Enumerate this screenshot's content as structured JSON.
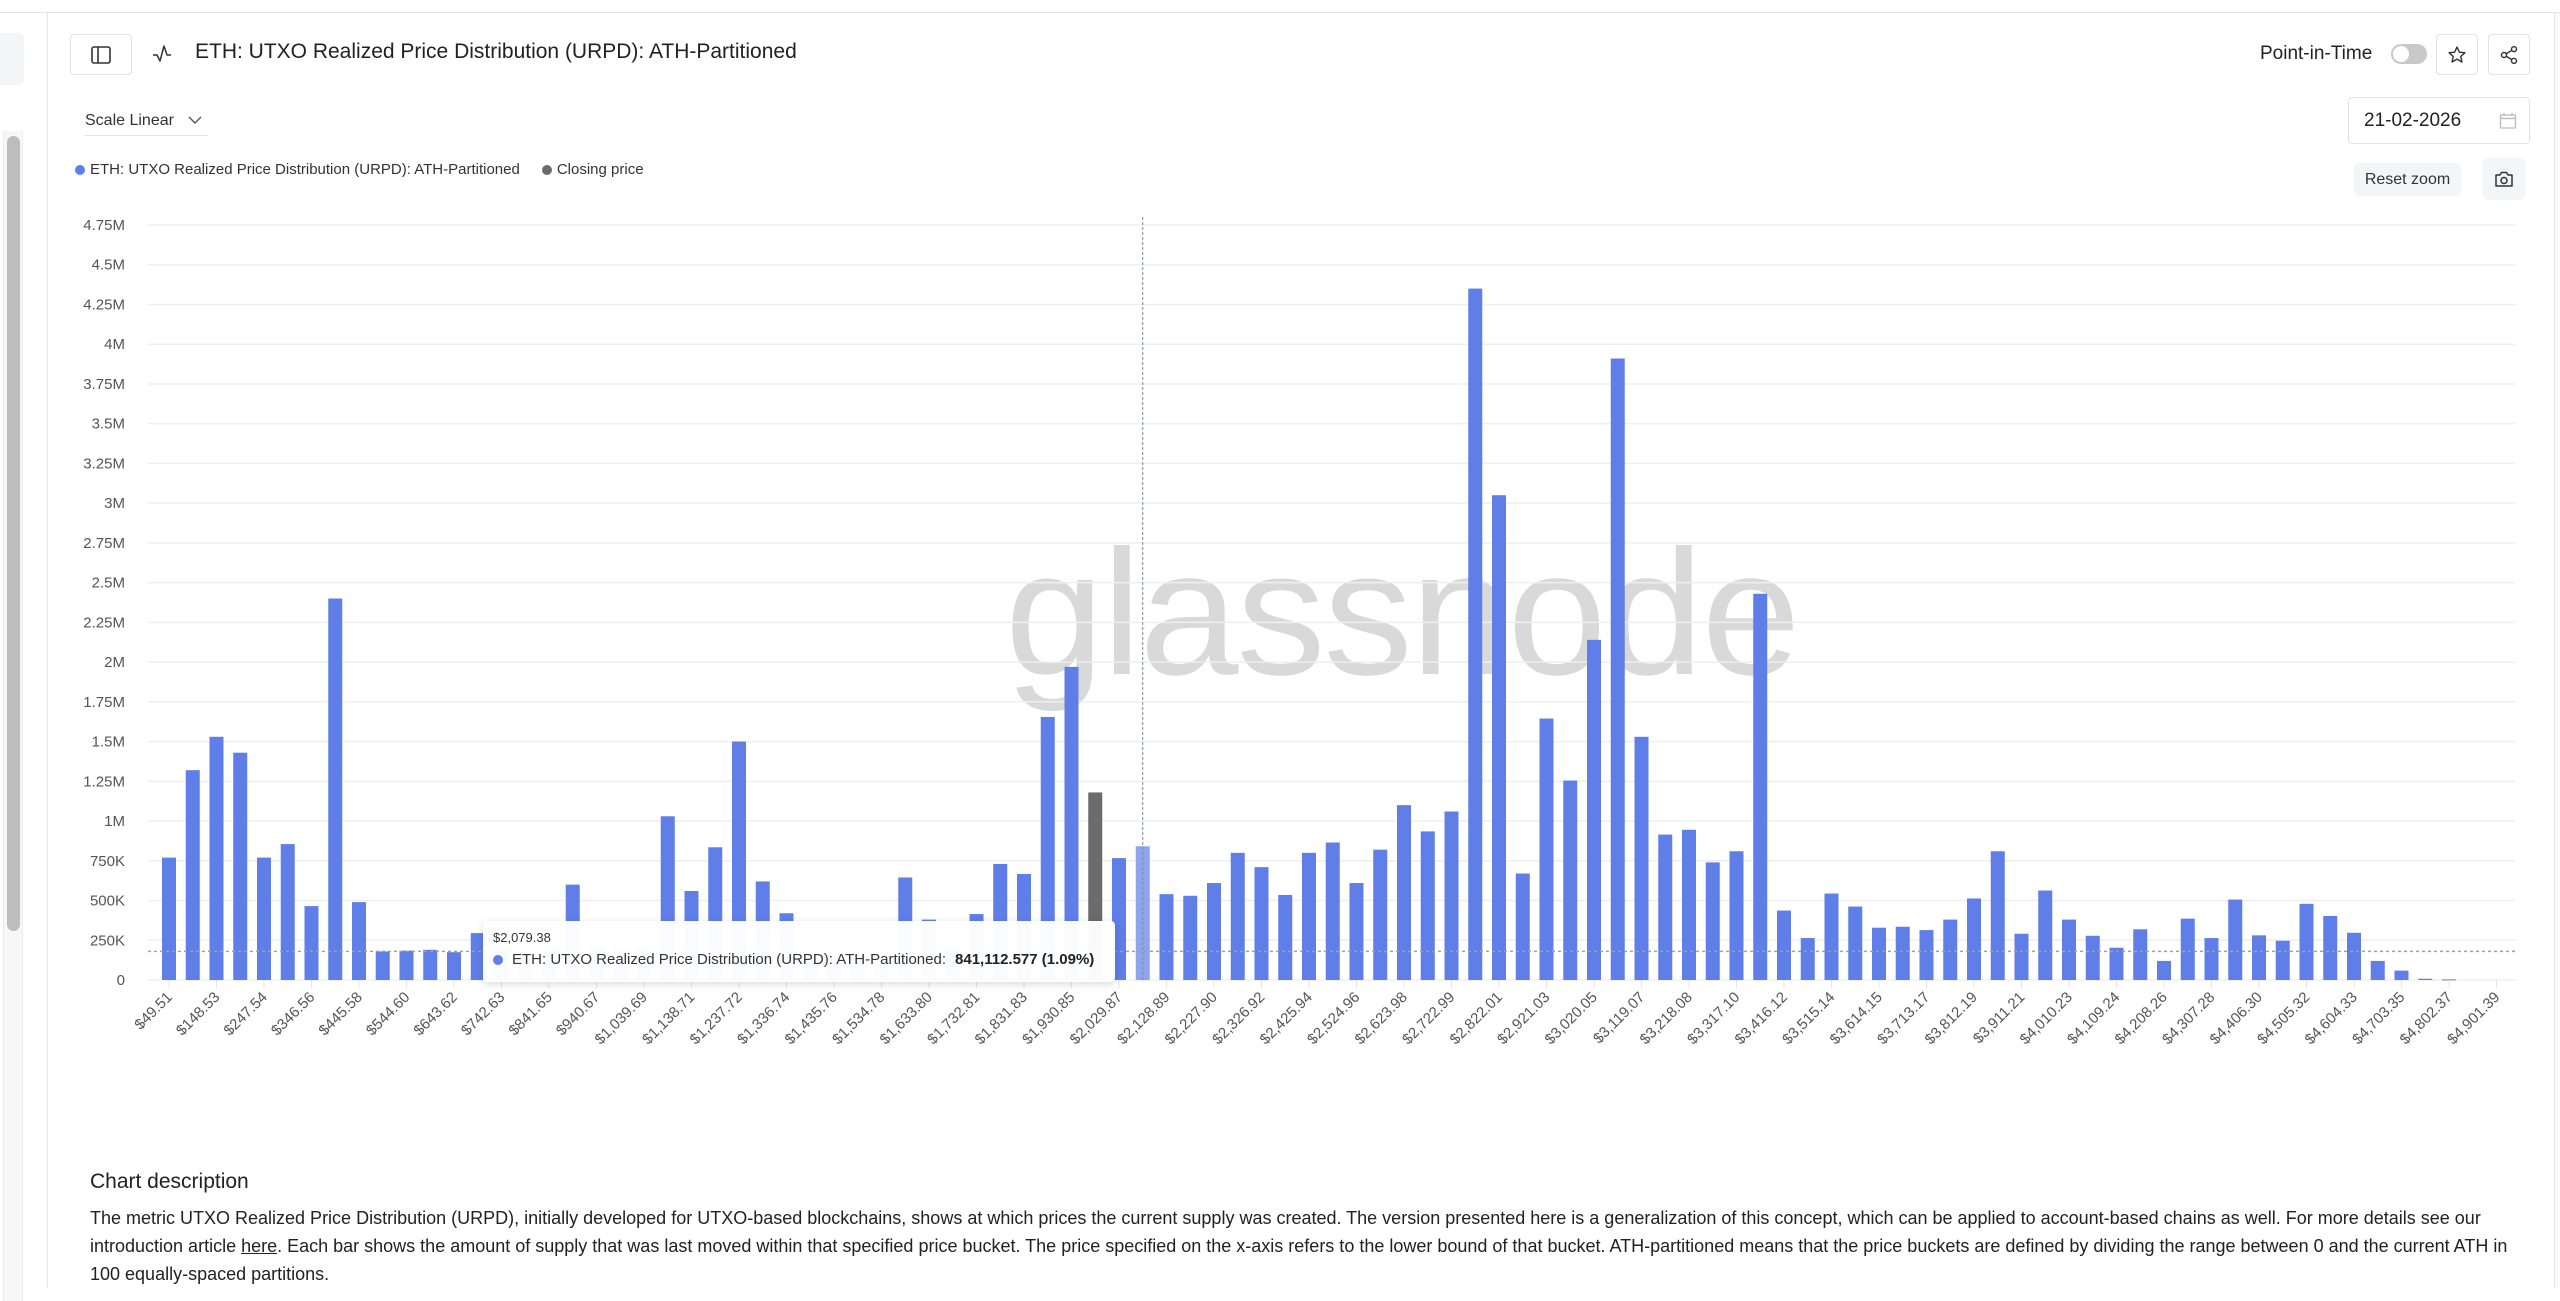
{
  "header": {
    "title": "ETH: UTXO Realized Price Distribution (URPD): ATH-Partitioned",
    "point_in_time_label": "Point-in-Time",
    "point_in_time_enabled": false,
    "sidebar_toggle_icon": "sidebar-panel-icon",
    "chart_type_icon": "line-chart-icon",
    "favorite_icon": "star-icon",
    "share_icon": "share-icon"
  },
  "controls": {
    "scale_label": "Scale Linear",
    "date_value": "21-02-2026",
    "date_icon": "calendar-icon",
    "reset_zoom_label": "Reset zoom",
    "screenshot_icon": "camera-icon"
  },
  "legend": [
    {
      "label": "ETH: UTXO Realized Price Distribution (URPD): ATH-Partitioned",
      "color": "#5f7ee8"
    },
    {
      "label": "Closing price",
      "color": "#6b6b6b"
    }
  ],
  "watermark": "glassnode",
  "tooltip": {
    "price": "$2,079.38",
    "series_label": "ETH: UTXO Realized Price Distribution (URPD): ATH-Partitioned:",
    "value": "841,112.577 (1.09%)"
  },
  "description": {
    "heading": "Chart description",
    "text_before_link": "The metric UTXO Realized Price Distribution (URPD), initially developed for UTXO-based blockchains, shows at which prices the current supply was created. The version presented here is a generalization of this concept, which can be applied to account-based chains as well. For more details see our introduction article ",
    "link_text": "here",
    "text_after_link": ". Each bar shows the amount of supply that was last moved within that specified price bucket. The price specified on the x-axis refers to the lower bound of that bucket. ATH-partitioned means that the price buckets are defined by dividing the range between 0 and the current ATH in 100 equally-spaced partitions."
  },
  "colors": {
    "bar": "#5f7ee8",
    "bar_hover": "#8fa4ee",
    "closing_bar": "#6b6b6b",
    "grid": "#efefef",
    "axis_text": "#555555"
  },
  "chart_data": {
    "type": "bar",
    "title": "ETH: UTXO Realized Price Distribution (URPD): ATH-Partitioned",
    "xlabel": "",
    "ylabel": "",
    "ylim": [
      0,
      4750000
    ],
    "yticks": [
      "0",
      "250K",
      "500K",
      "750K",
      "1M",
      "1.25M",
      "1.5M",
      "1.75M",
      "2M",
      "2.25M",
      "2.5M",
      "2.75M",
      "3M",
      "3.25M",
      "3.5M",
      "3.75M",
      "4M",
      "4.25M",
      "4.5M",
      "4.75M"
    ],
    "grid": true,
    "legend_position": "top-left",
    "bucket_step": 49.508,
    "xtick_labels": [
      "$49.51",
      "$148.53",
      "$247.54",
      "$346.56",
      "$445.58",
      "$544.60",
      "$643.62",
      "$742.63",
      "$841.65",
      "$940.67",
      "$1,039.69",
      "$1,138.71",
      "$1,237.72",
      "$1,336.74",
      "$1,435.76",
      "$1,534.78",
      "$1,633.80",
      "$1,732.81",
      "$1,831.83",
      "$1,930.85",
      "$2,029.87",
      "$2,128.89",
      "$2,227.90",
      "$2,326.92",
      "$2,425.94",
      "$2,524.96",
      "$2,623.98",
      "$2,722.99",
      "$2,822.01",
      "$2,921.03",
      "$3,020.05",
      "$3,119.07",
      "$3,218.08",
      "$3,317.10",
      "$3,416.12",
      "$3,515.14",
      "$3,614.15",
      "$3,713.17",
      "$3,812.19",
      "$3,911.21",
      "$4,010.23",
      "$4,109.24",
      "$4,208.26",
      "$4,307.28",
      "$4,406.30",
      "$4,505.32",
      "$4,604.33",
      "$4,703.35",
      "$4,802.37",
      "$4,901.39"
    ],
    "series": [
      {
        "name": "ETH: UTXO Realized Price Distribution (URPD): ATH-Partitioned",
        "values": [
          770000,
          1320000,
          1530000,
          1430000,
          770000,
          855000,
          465000,
          2400000,
          490000,
          180000,
          185000,
          190000,
          175000,
          295000,
          200000,
          180000,
          190000,
          600000,
          210000,
          190000,
          200000,
          1030000,
          560000,
          835000,
          1500000,
          620000,
          420000,
          180000,
          160000,
          150000,
          170000,
          645000,
          380000,
          200000,
          415000,
          730000,
          667000,
          1655000,
          1970000,
          1180000,
          767000,
          841113,
          540000,
          530000,
          610000,
          800000,
          710000,
          535000,
          800000,
          865000,
          610000,
          820000,
          1100000,
          935000,
          1060000,
          4350000,
          3050000,
          670000,
          1645000,
          1255000,
          2140000,
          3910000,
          1530000,
          915000,
          945000,
          740000,
          810000,
          2430000,
          437000,
          264000,
          544000,
          462000,
          329000,
          335000,
          314000,
          380000,
          513000,
          810000,
          291000,
          563000,
          380000,
          278000,
          203000,
          319000,
          120000,
          386000,
          264000,
          506000,
          281000,
          247000,
          479000,
          403000,
          297000,
          120000,
          59000,
          8000,
          4000,
          0,
          0
        ]
      },
      {
        "name": "Closing price",
        "bucket_index": 39,
        "value": 180000
      }
    ],
    "highlighted_bucket_index": 41,
    "highlighted_price": "$2,079.38"
  }
}
